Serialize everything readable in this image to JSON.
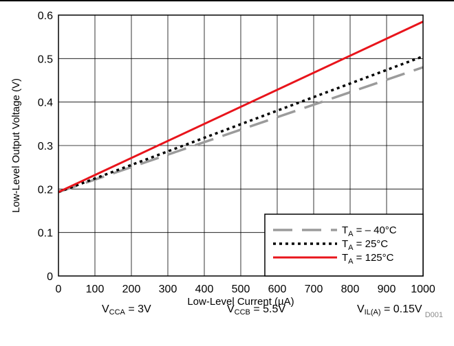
{
  "chart_data": {
    "type": "line",
    "title": "",
    "xlabel": "Low-Level Current (µA)",
    "ylabel": "Low-Level Output Voltage (V)",
    "xlim": [
      0,
      1000
    ],
    "ylim": [
      0,
      0.6
    ],
    "xticks": [
      0,
      100,
      200,
      300,
      400,
      500,
      600,
      700,
      800,
      900,
      1000
    ],
    "yticks": [
      0,
      0.1,
      0.2,
      0.3,
      0.4,
      0.5,
      0.6
    ],
    "grid": true,
    "legend_position": "bottom-right",
    "series": [
      {
        "name_prefix": "T",
        "name_sub": "A",
        "name_suffix": " = – 40°C",
        "style": "long-dash",
        "color": "#9b9b9b",
        "x": [
          0,
          1000
        ],
        "y": [
          0.193,
          0.48
        ]
      },
      {
        "name_prefix": "T",
        "name_sub": "A",
        "name_suffix": " = 25°C",
        "style": "dotted",
        "color": "#000000",
        "x": [
          0,
          1000
        ],
        "y": [
          0.193,
          0.505
        ]
      },
      {
        "name_prefix": "T",
        "name_sub": "A",
        "name_suffix": " = 125°C",
        "style": "solid",
        "color": "#e8141b",
        "x": [
          0,
          1000
        ],
        "y": [
          0.193,
          0.585
        ]
      }
    ],
    "annotation": "D001"
  },
  "conditions": [
    {
      "main": "V",
      "sub": "CCA",
      "rest": " = 3V"
    },
    {
      "main": "V",
      "sub": "CCB",
      "rest": " = 5.5V"
    },
    {
      "main": "V",
      "sub": "IL(A)",
      "rest": " = 0.15V"
    }
  ]
}
